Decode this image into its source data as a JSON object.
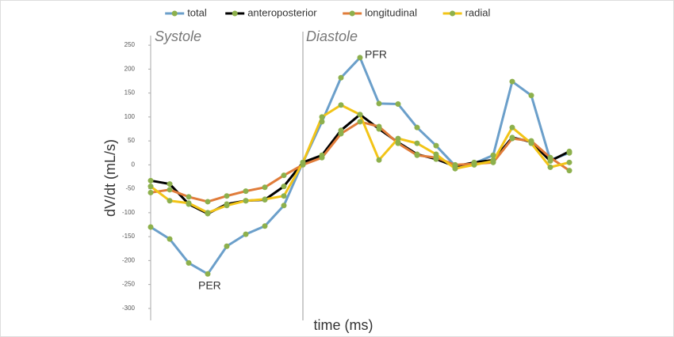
{
  "chart_data": {
    "type": "line",
    "x_label": "time (ms)",
    "y_label": "dV/dt (mL/s)",
    "annotations": [
      "Systole",
      "Diastole",
      "PFR",
      "PER"
    ],
    "categories": [
      null,
      null,
      null,
      null,
      null,
      null,
      null,
      null,
      null,
      null,
      null,
      null,
      null,
      null,
      null,
      null,
      null,
      null,
      null,
      null,
      null,
      null,
      null
    ],
    "ylim": [
      -325,
      270
    ],
    "yticks": [
      -300,
      -250,
      -200,
      -150,
      -100,
      -50,
      0,
      50,
      100,
      150,
      200,
      250
    ],
    "grid": false,
    "legend": "top",
    "marker_color": "#8db04c",
    "series": [
      {
        "name": "total",
        "color": "#6b9fca",
        "values": [
          -130,
          -155,
          -205,
          -228,
          -170,
          -145,
          -128,
          -85,
          5,
          90,
          182,
          224,
          128,
          127,
          78,
          40,
          -2,
          3,
          20,
          174,
          145,
          10,
          25
        ]
      },
      {
        "name": "anteroposterior",
        "color": "#000000",
        "values": [
          -33,
          -40,
          -82,
          -102,
          -82,
          -75,
          -73,
          -45,
          5,
          20,
          72,
          105,
          75,
          47,
          22,
          12,
          -3,
          5,
          10,
          57,
          48,
          8,
          28
        ]
      },
      {
        "name": "longitudinal",
        "color": "#e07c3a",
        "values": [
          -58,
          -52,
          -67,
          -77,
          -65,
          -55,
          -47,
          -22,
          0,
          15,
          65,
          90,
          80,
          45,
          20,
          15,
          0,
          2,
          5,
          55,
          50,
          15,
          -12
        ]
      },
      {
        "name": "radial",
        "color": "#f2c417",
        "values": [
          -45,
          -75,
          -80,
          -100,
          -85,
          -75,
          -72,
          -65,
          5,
          100,
          125,
          105,
          10,
          55,
          45,
          22,
          -8,
          0,
          8,
          78,
          45,
          -5,
          5
        ]
      }
    ]
  }
}
